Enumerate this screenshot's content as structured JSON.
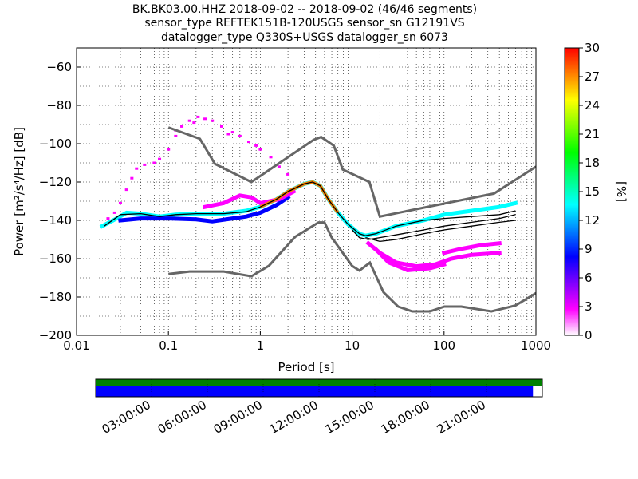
{
  "title_lines": [
    "BK.BK03.00.HHZ   2018-09-02 -- 2018-09-02  (46/46 segments)",
    "sensor_type REFTEK151B-120USGS sensor_sn G12191VS",
    "datalogger_type Q330S+USGS datalogger_sn 6073"
  ],
  "chart_data": {
    "type": "heatmap",
    "xlabel": "Period [s]",
    "ylabel": "Power [m²/s⁴/Hz] [dB]",
    "x_scale": "log",
    "xlim": [
      0.01,
      1000
    ],
    "ylim": [
      -200,
      -50
    ],
    "x_ticks": [
      {
        "value": 0.01,
        "label": "0.01"
      },
      {
        "value": 0.1,
        "label": "0.1"
      },
      {
        "value": 1,
        "label": "1"
      },
      {
        "value": 10,
        "label": "10"
      },
      {
        "value": 100,
        "label": "100"
      },
      {
        "value": 1000,
        "label": "1000"
      }
    ],
    "y_ticks": [
      {
        "value": -60,
        "label": "−60"
      },
      {
        "value": -80,
        "label": "−80"
      },
      {
        "value": -100,
        "label": "−100"
      },
      {
        "value": -120,
        "label": "−120"
      },
      {
        "value": -140,
        "label": "−140"
      },
      {
        "value": -160,
        "label": "−160"
      },
      {
        "value": -180,
        "label": "−180"
      },
      {
        "value": -200,
        "label": "−200"
      }
    ],
    "grid": "dotted",
    "colorbar": {
      "label": "[%]",
      "range": [
        0,
        30
      ],
      "ticks": [
        {
          "value": 0,
          "label": "0"
        },
        {
          "value": 3,
          "label": "3"
        },
        {
          "value": 6,
          "label": "6"
        },
        {
          "value": 9,
          "label": "9"
        },
        {
          "value": 12,
          "label": "12"
        },
        {
          "value": 15,
          "label": "15"
        },
        {
          "value": 18,
          "label": "18"
        },
        {
          "value": 21,
          "label": "21"
        },
        {
          "value": 24,
          "label": "24"
        },
        {
          "value": 27,
          "label": "27"
        },
        {
          "value": 30,
          "label": "30"
        }
      ],
      "colors": [
        "#ffffff",
        "#ff00ff",
        "#7f00ff",
        "#0000ff",
        "#0080ff",
        "#00ffff",
        "#00ff80",
        "#00ff00",
        "#80ff00",
        "#ffff00",
        "#ff8000",
        "#ff0000"
      ]
    },
    "noise_models": {
      "color": "#666666",
      "high": [
        [
          0.1,
          -91.5
        ],
        [
          0.22,
          -97.4
        ],
        [
          0.32,
          -110.5
        ],
        [
          0.8,
          -120
        ],
        [
          3.8,
          -98
        ],
        [
          4.6,
          -96.5
        ],
        [
          6.3,
          -101
        ],
        [
          7.9,
          -113.5
        ],
        [
          15.4,
          -120
        ],
        [
          20,
          -138
        ],
        [
          350,
          -126
        ],
        [
          1000,
          -112
        ]
      ],
      "low": [
        [
          0.1,
          -168
        ],
        [
          0.17,
          -166.7
        ],
        [
          0.4,
          -166.7
        ],
        [
          0.8,
          -169.2
        ],
        [
          1.24,
          -163.7
        ],
        [
          2.4,
          -148.6
        ],
        [
          4.3,
          -141.1
        ],
        [
          5,
          -141.1
        ],
        [
          6,
          -149
        ],
        [
          10,
          -163.8
        ],
        [
          12,
          -166.2
        ],
        [
          15.6,
          -162.1
        ],
        [
          21.9,
          -177.5
        ],
        [
          31.6,
          -185
        ],
        [
          45,
          -187.5
        ],
        [
          70,
          -187.5
        ],
        [
          101,
          -185
        ],
        [
          154,
          -185
        ],
        [
          328,
          -187.5
        ],
        [
          600,
          -184.4
        ],
        [
          1000,
          -178
        ]
      ]
    },
    "series": [
      {
        "color": "#000000",
        "points": [
          [
            0.02,
            -143
          ],
          [
            0.03,
            -137
          ],
          [
            0.05,
            -136.5
          ],
          [
            0.08,
            -138
          ],
          [
            0.12,
            -137
          ],
          [
            0.2,
            -136.5
          ],
          [
            0.4,
            -136.5
          ],
          [
            0.7,
            -135.5
          ],
          [
            1,
            -133
          ],
          [
            1.5,
            -129
          ],
          [
            2,
            -125
          ],
          [
            3,
            -121
          ],
          [
            3.7,
            -120
          ],
          [
            4.5,
            -122
          ],
          [
            5.5,
            -129
          ],
          [
            7,
            -136
          ],
          [
            9,
            -142
          ],
          [
            12,
            -147
          ],
          [
            14,
            -148
          ],
          [
            18,
            -147
          ],
          [
            30,
            -143
          ],
          [
            60,
            -140
          ],
          [
            100,
            -139
          ],
          [
            200,
            -138
          ],
          [
            400,
            -137
          ],
          [
            600,
            -135
          ]
        ]
      },
      {
        "color": "#000000",
        "points": [
          [
            10,
            -145
          ],
          [
            12,
            -149
          ],
          [
            15,
            -150
          ],
          [
            20,
            -149
          ],
          [
            35,
            -147
          ],
          [
            60,
            -145
          ],
          [
            100,
            -143
          ],
          [
            200,
            -141
          ],
          [
            400,
            -139
          ],
          [
            600,
            -137
          ]
        ]
      },
      {
        "color": "#000000",
        "points": [
          [
            14,
            -149
          ],
          [
            20,
            -151
          ],
          [
            30,
            -150
          ],
          [
            60,
            -147
          ],
          [
            100,
            -145
          ],
          [
            200,
            -143
          ],
          [
            400,
            -141
          ],
          [
            600,
            -140
          ]
        ]
      }
    ],
    "density_bands": [
      {
        "level": 14,
        "points": [
          [
            0.019,
            -143
          ],
          [
            0.025,
            -140
          ],
          [
            0.035,
            -136
          ],
          [
            0.05,
            -136.5
          ],
          [
            0.08,
            -138
          ],
          [
            0.12,
            -137
          ],
          [
            0.2,
            -136.5
          ],
          [
            0.4,
            -136.5
          ],
          [
            0.7,
            -135
          ],
          [
            1,
            -133
          ],
          [
            1.5,
            -129
          ],
          [
            2,
            -125
          ],
          [
            3,
            -121
          ],
          [
            3.7,
            -120
          ],
          [
            4.5,
            -122
          ],
          [
            5.5,
            -129
          ],
          [
            7,
            -136
          ],
          [
            9,
            -142
          ],
          [
            12,
            -147
          ],
          [
            14,
            -148
          ],
          [
            18,
            -147
          ],
          [
            30,
            -143
          ],
          [
            60,
            -140
          ],
          [
            100,
            -137
          ],
          [
            200,
            -135
          ],
          [
            400,
            -133
          ],
          [
            600,
            -131
          ]
        ]
      },
      {
        "level": 8,
        "points": [
          [
            0.03,
            -140
          ],
          [
            0.05,
            -139
          ],
          [
            0.1,
            -139
          ],
          [
            0.2,
            -139.5
          ],
          [
            0.3,
            -140.5
          ],
          [
            0.5,
            -139
          ],
          [
            0.7,
            -138
          ],
          [
            1,
            -136
          ],
          [
            1.5,
            -132
          ],
          [
            2,
            -128
          ]
        ]
      },
      {
        "level": 3,
        "points": [
          [
            0.25,
            -133
          ],
          [
            0.4,
            -131
          ],
          [
            0.6,
            -127
          ],
          [
            0.8,
            -128
          ],
          [
            1,
            -131
          ],
          [
            1.6,
            -129
          ],
          [
            2.3,
            -125
          ]
        ]
      },
      {
        "level": 4,
        "points": [
          [
            15,
            -152
          ],
          [
            20,
            -157
          ],
          [
            30,
            -162
          ],
          [
            50,
            -164
          ],
          [
            80,
            -163
          ],
          [
            120,
            -160
          ],
          [
            200,
            -158
          ],
          [
            400,
            -157
          ]
        ]
      },
      {
        "level": 2,
        "points": [
          [
            18,
            -155
          ],
          [
            25,
            -162
          ],
          [
            40,
            -166
          ],
          [
            70,
            -165
          ],
          [
            100,
            -163
          ]
        ]
      },
      {
        "level": 2,
        "points": [
          [
            100,
            -157
          ],
          [
            150,
            -155
          ],
          [
            250,
            -153
          ],
          [
            400,
            -152
          ]
        ]
      }
    ],
    "sparse_points": {
      "level": 2,
      "points": [
        [
          0.022,
          -139
        ],
        [
          0.026,
          -136
        ],
        [
          0.03,
          -131
        ],
        [
          0.035,
          -124
        ],
        [
          0.04,
          -118
        ],
        [
          0.045,
          -113
        ],
        [
          0.055,
          -111
        ],
        [
          0.07,
          -110
        ],
        [
          0.08,
          -108
        ],
        [
          0.1,
          -103
        ],
        [
          0.12,
          -96
        ],
        [
          0.14,
          -91
        ],
        [
          0.17,
          -88
        ],
        [
          0.21,
          -86
        ],
        [
          0.25,
          -87
        ],
        [
          0.3,
          -88
        ],
        [
          0.38,
          -91
        ],
        [
          0.5,
          -94
        ],
        [
          0.6,
          -96
        ],
        [
          0.75,
          -99
        ],
        [
          1,
          -103
        ],
        [
          1.3,
          -107
        ],
        [
          1.6,
          -112
        ],
        [
          2,
          -116
        ],
        [
          0.12,
          -93
        ],
        [
          0.19,
          -89
        ],
        [
          0.45,
          -95
        ],
        [
          0.9,
          -101
        ]
      ]
    }
  },
  "time_coverage": {
    "tick_labels": [
      "03:00:00",
      "06:00:00",
      "09:00:00",
      "12:00:00",
      "15:00:00",
      "18:00:00",
      "21:00:00"
    ],
    "segments_fraction": 1.0,
    "data_fraction": 0.979,
    "segments_color": "#008000",
    "data_color": "#0000ff"
  }
}
